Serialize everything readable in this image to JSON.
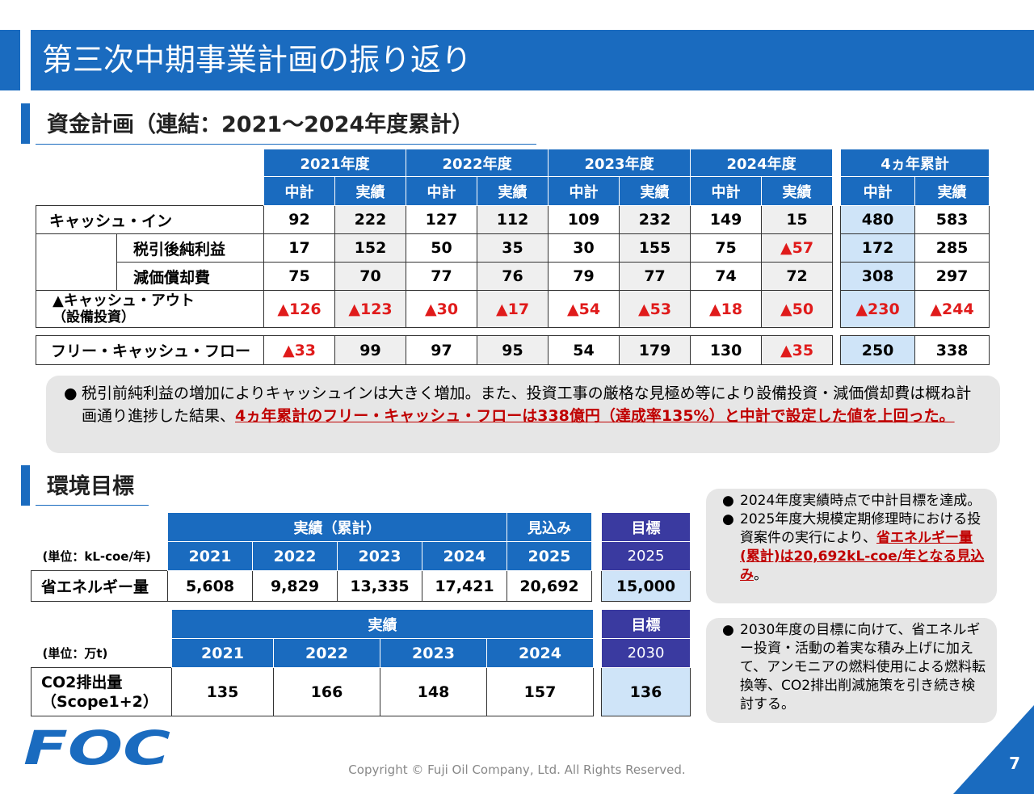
{
  "title": "第三次中期事業計画の振り返り",
  "section1": {
    "heading": "資金計画（連結：2021～2024年度累計）",
    "years": [
      "2021年度",
      "2022年度",
      "2023年度",
      "2024年度"
    ],
    "total_header": "4ヵ年累計",
    "plan_label": "中計",
    "actual_label": "実績",
    "rows": [
      {
        "label": "キャッシュ・イン",
        "cells": [
          "92",
          "222",
          "127",
          "112",
          "109",
          "232",
          "149",
          "15"
        ],
        "totals": [
          "480",
          "583"
        ]
      },
      {
        "label": "税引後純利益",
        "cells": [
          "17",
          "152",
          "50",
          "35",
          "30",
          "155",
          "75",
          "▲57"
        ],
        "totals": [
          "172",
          "285"
        ]
      },
      {
        "label": "減価償却費",
        "cells": [
          "75",
          "70",
          "77",
          "76",
          "79",
          "77",
          "74",
          "72"
        ],
        "totals": [
          "308",
          "297"
        ]
      },
      {
        "label": "▲キャッシュ・アウト",
        "label2": "（設備投資）",
        "cells": [
          "▲126",
          "▲123",
          "▲30",
          "▲17",
          "▲54",
          "▲53",
          "▲18",
          "▲50"
        ],
        "totals": [
          "▲230",
          "▲244"
        ]
      }
    ],
    "fcf": {
      "label": "フリー・キャッシュ・フロー",
      "cells": [
        "▲33",
        "99",
        "97",
        "95",
        "54",
        "179",
        "130",
        "▲35"
      ],
      "totals": [
        "250",
        "338"
      ]
    },
    "note_text": "税引前純利益の増加によりキャッシュインは大きく増加。また、投資工事の厳格な見極め等により設備投資・減価償却費は概ね計画通り進捗した結果、",
    "note_highlight": "4ヵ年累計のフリー・キャッシュ・フローは338億円（達成率135%）と中計で設定した値を上回った。"
  },
  "section2": {
    "heading": "環境目標",
    "t1": {
      "group_header": "実績（累計）",
      "forecast_header": "見込み",
      "target_header": "目標",
      "unit": "(単位：kL-coe/年)",
      "years": [
        "2021",
        "2022",
        "2023",
        "2024",
        "2025"
      ],
      "target_year": "2025",
      "row_label": "省エネルギー量",
      "values": [
        "5,608",
        "9,829",
        "13,335",
        "17,421",
        "20,692"
      ],
      "target_value": "15,000"
    },
    "t2": {
      "group_header": "実績",
      "target_header": "目標",
      "unit": "(単位：万t)",
      "years": [
        "2021",
        "2022",
        "2023",
        "2024"
      ],
      "target_year": "2030",
      "row_label": "CO2排出量",
      "row_label2": "（Scope1+2）",
      "values": [
        "135",
        "166",
        "148",
        "157"
      ],
      "target_value": "136"
    },
    "note1_item1": "2024年度実績時点で中計目標を達成。",
    "note1_item2_a": "2025年度大規模定期修理時における投資案件の実行により、",
    "note1_item2_b": "省エネルギー量(累計)は20,692kL-coe/年となる見込み",
    "note1_item2_c": "。",
    "note2_item": "2030年度の目標に向けて、省エネルギー投資・活動の着実な積み上げに加えて、アンモニアの燃料使用による燃料転換等、CO2排出削減施策を引き続き検討する。"
  },
  "footer": {
    "copyright": "Copyright © Fuji Oil Company, Ltd. All Rights Reserved.",
    "page": "7",
    "logo_text": "FOC"
  }
}
